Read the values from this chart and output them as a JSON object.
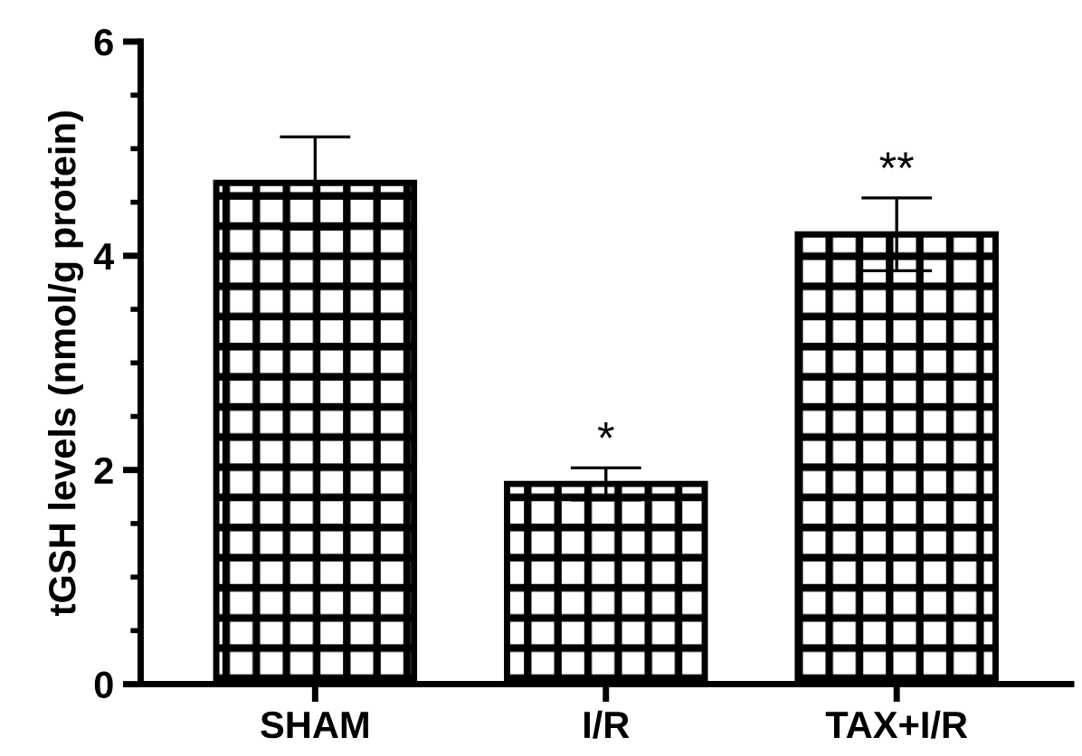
{
  "chart_data": {
    "type": "bar",
    "ylabel": "tGSH levels (nmol/g protein)",
    "categories": [
      "SHAM",
      "I/R",
      "TAX+I/R"
    ],
    "values": [
      4.68,
      1.87,
      4.2
    ],
    "errors": [
      0.43,
      0.15,
      0.34
    ],
    "color": "#000000",
    "ylim": [
      0,
      6
    ],
    "yticks": [
      0,
      2,
      4,
      6
    ],
    "grid": false,
    "legend": false,
    "annotations": [
      {
        "text": "*",
        "x": "I/R",
        "y": 2.02
      },
      {
        "text": "**",
        "x": "TAX+I/R",
        "y": 4.54
      }
    ]
  }
}
